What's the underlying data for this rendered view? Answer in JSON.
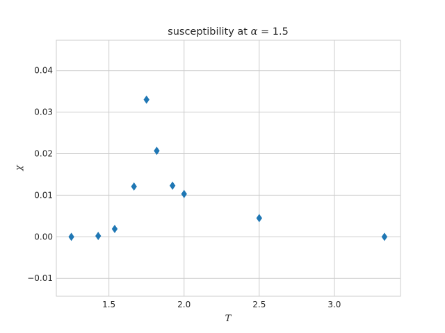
{
  "chart_data": {
    "type": "scatter",
    "title": {
      "prefix": "susceptibility at ",
      "symbol": "α",
      "eq": " = ",
      "value": "1.5"
    },
    "xlabel": "T",
    "ylabel": "χ",
    "xlim": [
      1.15,
      3.44
    ],
    "ylim": [
      -0.0143,
      0.0473
    ],
    "xticks": [
      1.5,
      2.0,
      2.5,
      3.0
    ],
    "xtick_labels": [
      "1.5",
      "2.0",
      "2.5",
      "3.0"
    ],
    "yticks": [
      -0.01,
      0.0,
      0.01,
      0.02,
      0.03,
      0.04
    ],
    "ytick_labels": [
      "−0.01",
      "0.00",
      "0.01",
      "0.02",
      "0.03",
      "0.04"
    ],
    "grid": true,
    "marker": "diamond",
    "colors": {
      "marker": "#1f77b4",
      "grid": "#cccccc",
      "spine": "#cccccc",
      "text": "#262626"
    },
    "series": [
      {
        "x": [
          1.25,
          1.4286,
          1.5385,
          1.6667,
          1.75,
          1.8182,
          1.9231,
          2.0,
          2.5,
          3.3333
        ],
        "y": [
          0.0,
          0.0002,
          0.0019,
          0.0121,
          0.033,
          0.0207,
          0.0123,
          0.0103,
          0.0045,
          0.0
        ]
      }
    ]
  }
}
